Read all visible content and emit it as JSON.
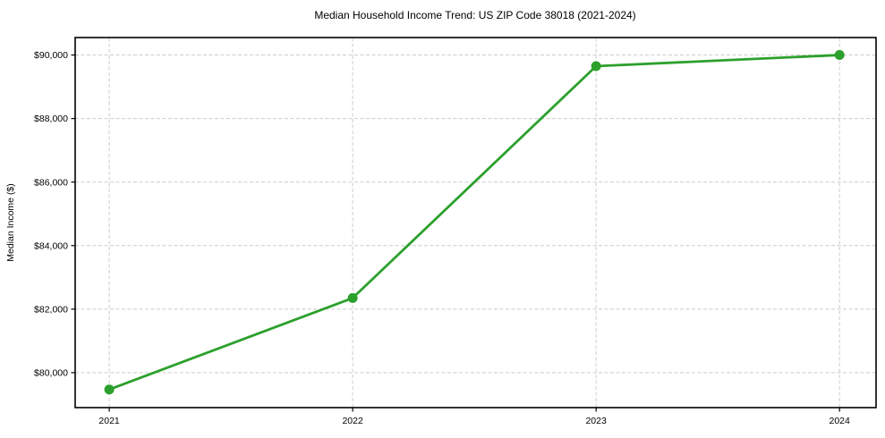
{
  "chart_data": {
    "type": "line",
    "title": "Median Household Income Trend: US ZIP Code 38018 (2021-2024)",
    "xlabel": "",
    "ylabel": "Median Income ($)",
    "x": [
      2021,
      2022,
      2023,
      2024
    ],
    "x_tick_labels": [
      "2021",
      "2022",
      "2023",
      "2024"
    ],
    "series": [
      {
        "name": "Median Household Income",
        "values": [
          79470,
          82350,
          89650,
          90000
        ]
      }
    ],
    "y_ticks": [
      {
        "value": 80000,
        "label": "$80,000"
      },
      {
        "value": 82000,
        "label": "$82,000"
      },
      {
        "value": 84000,
        "label": "$84,000"
      },
      {
        "value": 86000,
        "label": "$86,000"
      },
      {
        "value": 88000,
        "label": "$88,000"
      },
      {
        "value": 90000,
        "label": "$90,000"
      }
    ],
    "xlim": [
      2020.86,
      2024.15
    ],
    "ylim": [
      78900,
      90550
    ],
    "grid": "dashed, both axes",
    "legend_position": "none",
    "line_color": "#2ca02c",
    "marker_color": "#2ca02c",
    "marker_shape": "circle",
    "gridline_color": "#cccccc",
    "spine_color": "#000000",
    "background_color": "#ffffff"
  }
}
